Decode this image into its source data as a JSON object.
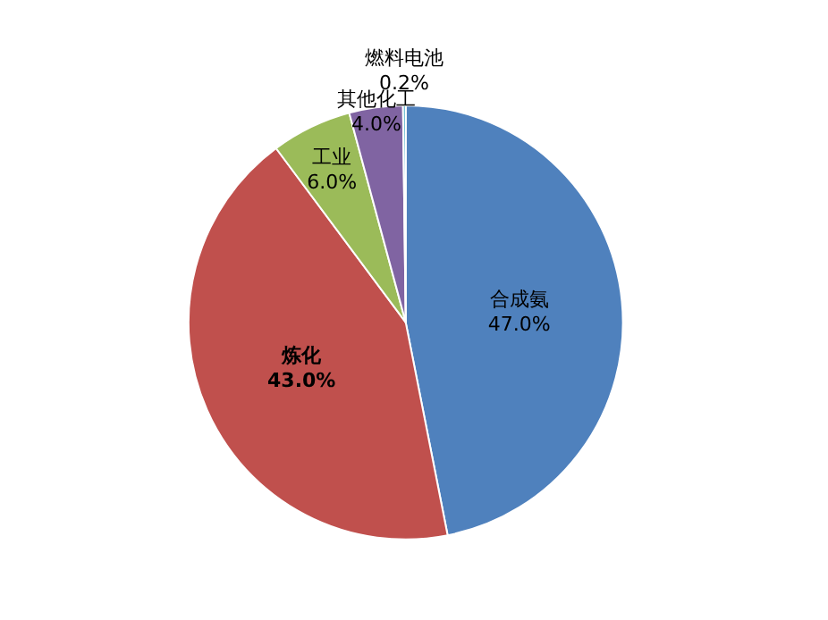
{
  "chart_data": {
    "type": "pie",
    "categories": [
      "合成氨",
      "炼化",
      "工业",
      "其他化工",
      "燃料电池"
    ],
    "values": [
      47.0,
      43.0,
      6.0,
      4.0,
      0.2
    ],
    "value_labels": [
      "47.0%",
      "43.0%",
      "6.0%",
      "4.0%",
      "0.2%"
    ],
    "colors": [
      "#4f81bd",
      "#c0504d",
      "#9bbb59",
      "#8064a2",
      "#4bacc6"
    ],
    "legend": false
  }
}
